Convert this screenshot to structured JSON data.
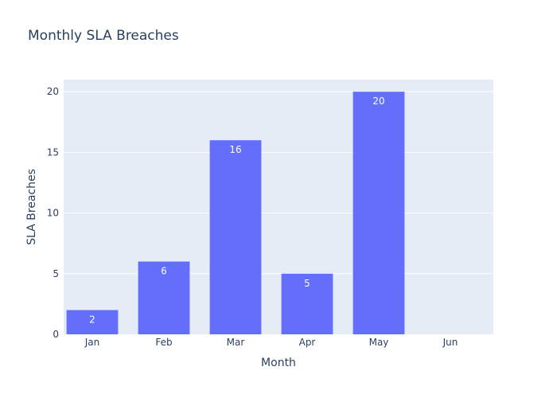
{
  "chart_data": {
    "type": "bar",
    "title": "Monthly SLA Breaches",
    "xlabel": "Month",
    "ylabel": "SLA Breaches",
    "categories": [
      "Jan",
      "Feb",
      "Mar",
      "Apr",
      "May",
      "Jun"
    ],
    "values": [
      2,
      6,
      16,
      5,
      20,
      0
    ],
    "x_positions": [
      1,
      2,
      3,
      4,
      5,
      6
    ],
    "x_range": [
      0.6,
      6.6
    ],
    "ylim": [
      0,
      21
    ],
    "yticks": [
      0,
      5,
      10,
      15,
      20
    ],
    "bar_width": 0.72,
    "show_value_labels": true,
    "grid": true,
    "colors": {
      "bar": "#636efa",
      "plot_bg": "#e5ecf6",
      "grid": "#ffffff",
      "text": "#2a3f5f"
    }
  }
}
